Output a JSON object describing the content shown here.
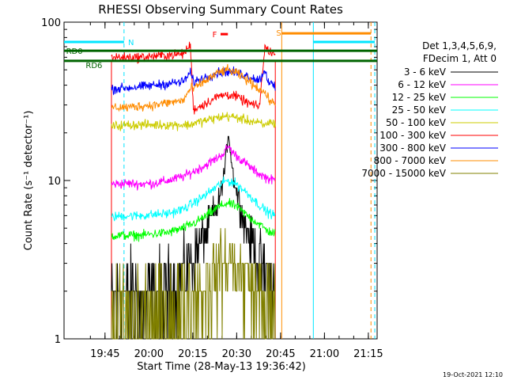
{
  "chart_data": {
    "type": "line",
    "title": "RHESSI Observing Summary Count Rates",
    "xlabel": "Start Time (28-May-13 19:36:42)",
    "ylabel": "Count Rate (s⁻¹ detector⁻¹)",
    "yscale": "log",
    "ylim": [
      1,
      100
    ],
    "xlim_minutes": [
      -5.7,
      101.3
    ],
    "x_tick_labels": [
      "19:45",
      "20:00",
      "20:15",
      "20:30",
      "20:45",
      "21:00",
      "21:15"
    ],
    "y_tick_labels": [
      "1",
      "10",
      "100"
    ],
    "x_ticks_minutes": [
      8.3,
      23.3,
      38.3,
      53.3,
      68.3,
      83.3,
      98.3
    ],
    "legend_header": [
      "Det 1,3,4,5,6,9,",
      "FDecim 1, Att 0"
    ],
    "legend_position": "right",
    "footer": "19-Oct-2021 12:10",
    "flag_labels": {
      "N": "N",
      "F": "F",
      "S": "S",
      "RD0": "RD0",
      "RD6": "RD6"
    },
    "colors": {
      "night": "#00e5ff",
      "saa": "#ff8c00",
      "flare": "#ff0000",
      "rd": "#006400",
      "axis": "#000000"
    },
    "flags": {
      "night": [
        [
          -5.7,
          14.8
        ],
        [
          79.5,
          100.5
        ]
      ],
      "saa": [
        [
          68.7,
          99.2
        ]
      ],
      "flare_marker": [
        [
          47.8,
          50.3
        ]
      ],
      "rd0": [
        [
          -5.7,
          101.3
        ]
      ],
      "rd6": [
        [
          -5.7,
          101.3
        ]
      ],
      "night_level": 75,
      "saa_level": 85,
      "rd0_level": 66,
      "rd6_level": 57,
      "flare_level": 84
    },
    "vertical_lines": [
      {
        "x": 14.8,
        "color": "#00e5ff",
        "style": "dashed"
      },
      {
        "x": 79.5,
        "color": "#00e5ff",
        "style": "solid"
      },
      {
        "x": 99.2,
        "color": "#ff8c00",
        "style": "dashed"
      },
      {
        "x": 100.5,
        "color": "#00e5ff",
        "style": "dashed"
      },
      {
        "x": 68.7,
        "color": "#ff8c00",
        "style": "solid"
      }
    ],
    "observing_interval_minutes": [
      10.5,
      66.5
    ],
    "series": [
      {
        "name": "3 - 6 keV",
        "color": "#000000",
        "x": [
          10.5,
          16,
          20,
          25,
          30,
          35,
          39,
          43,
          47,
          49,
          50.5,
          52,
          56,
          60,
          64,
          66.5
        ],
        "y": [
          1.8,
          1.8,
          1.8,
          1.8,
          2.1,
          2.6,
          3.6,
          4.8,
          7.0,
          11.0,
          20.0,
          11.0,
          5.5,
          3.5,
          2.3,
          2.0
        ]
      },
      {
        "name": "6 - 12 keV",
        "color": "#ff00ff",
        "x": [
          10.5,
          16,
          20,
          25,
          30,
          35,
          39,
          43,
          47,
          49,
          50.5,
          52,
          56,
          60,
          64,
          66.5
        ],
        "y": [
          9.5,
          9.6,
          9.5,
          9.6,
          10.0,
          10.6,
          11.5,
          12.6,
          14.0,
          15.0,
          16.5,
          15.0,
          13.0,
          11.3,
          10.3,
          10.0
        ]
      },
      {
        "name": "12 - 25 keV",
        "color": "#00ff00",
        "x": [
          10.5,
          16,
          20,
          25,
          30,
          35,
          39,
          43,
          47,
          50,
          53,
          57,
          61,
          64,
          66.5
        ],
        "y": [
          4.5,
          4.5,
          4.5,
          4.6,
          4.7,
          5.0,
          5.4,
          6.0,
          6.8,
          7.2,
          6.9,
          6.0,
          5.3,
          4.8,
          4.6
        ]
      },
      {
        "name": "25 - 50 keV",
        "color": "#00ffff",
        "x": [
          10.5,
          16,
          20,
          25,
          30,
          35,
          39,
          43,
          47,
          50,
          53,
          57,
          61,
          64,
          66.5
        ],
        "y": [
          5.9,
          6.0,
          6.0,
          6.1,
          6.2,
          6.6,
          7.3,
          8.2,
          9.3,
          10.0,
          9.6,
          8.3,
          7.0,
          6.3,
          6.0
        ]
      },
      {
        "name": "50 - 100 keV",
        "color": "#cccc00",
        "x": [
          10.5,
          16,
          20,
          25,
          30,
          35,
          37.5,
          38.5,
          43,
          47,
          50,
          53,
          57,
          61,
          63,
          64,
          66.5
        ],
        "y": [
          22.0,
          22.5,
          22.5,
          22.5,
          22.5,
          22.5,
          22.5,
          23.0,
          24.0,
          25.0,
          25.5,
          25.0,
          24.0,
          23.0,
          22.0,
          23.5,
          23.0
        ]
      },
      {
        "name": "100 - 300 keV",
        "color": "#ff0000",
        "x": [
          10.5,
          16,
          20,
          25,
          30,
          35,
          37.5,
          38.5,
          43,
          47,
          50,
          53,
          57,
          61,
          63,
          64,
          66.5
        ],
        "y": [
          60.0,
          60.0,
          60.0,
          61.0,
          62.0,
          63.0,
          72.0,
          28.0,
          31.0,
          34.0,
          35.0,
          34.0,
          31.0,
          29.0,
          70.0,
          67.0,
          62.0
        ]
      },
      {
        "name": "300 - 800 keV",
        "color": "#0000ff",
        "x": [
          10.5,
          16,
          20,
          25,
          30,
          35,
          37.5,
          38.5,
          43,
          47,
          50,
          53,
          57,
          61,
          63,
          64,
          66.5
        ],
        "y": [
          38.0,
          38.5,
          39.0,
          40.0,
          41.0,
          42.0,
          48.0,
          42.0,
          45.0,
          48.0,
          49.0,
          48.0,
          46.0,
          43.0,
          50.0,
          43.0,
          38.0
        ]
      },
      {
        "name": "800 - 7000 keV",
        "color": "#ff8c00",
        "x": [
          10.5,
          16,
          20,
          25,
          30,
          35,
          37.5,
          38.5,
          43,
          47,
          50,
          53,
          57,
          61,
          63,
          64,
          66.5
        ],
        "y": [
          29.0,
          29.0,
          29.5,
          30.0,
          31.0,
          32.0,
          38.0,
          38.0,
          43.0,
          48.0,
          50.0,
          48.0,
          43.0,
          38.0,
          36.0,
          33.0,
          30.0
        ]
      },
      {
        "name": "7000 - 15000 keV",
        "color": "#808000",
        "x": [
          10.5,
          16,
          20,
          25,
          30,
          35,
          39,
          43,
          47,
          50,
          53,
          57,
          61,
          64,
          66.5
        ],
        "y": [
          1.3,
          1.3,
          1.3,
          1.3,
          1.4,
          1.6,
          1.9,
          2.3,
          2.8,
          3.1,
          3.0,
          2.5,
          1.9,
          1.5,
          1.3
        ]
      }
    ]
  }
}
